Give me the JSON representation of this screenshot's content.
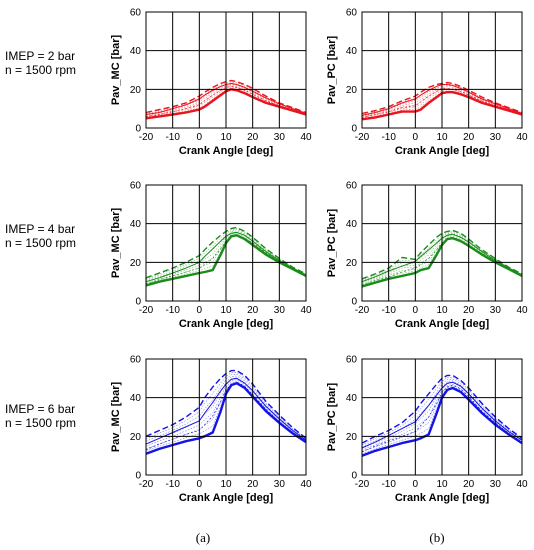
{
  "row_labels": [
    {
      "imep": "IMEP = 2 bar",
      "speed": "n = 1500 rpm"
    },
    {
      "imep": "IMEP = 4 bar",
      "speed": "n = 1500 rpm"
    },
    {
      "imep": "IMEP = 6 bar",
      "speed": "n = 1500 rpm"
    }
  ],
  "column_labels": [
    "(a)",
    "(b)"
  ],
  "colors": {
    "row1": "#e8141e",
    "row2": "#1a8c1a",
    "row3": "#1414e6"
  },
  "chart_data": [
    {
      "type": "line",
      "panel": "IMEP 2 bar - MC",
      "xlabel": "Crank Angle [deg]",
      "ylabel": "Pav_MC [bar]",
      "xlim": [
        -20,
        40
      ],
      "ylim": [
        0,
        60
      ],
      "xticks": [
        -20,
        -10,
        0,
        10,
        20,
        30,
        40
      ],
      "yticks": [
        0,
        20,
        40,
        60
      ],
      "grid": true,
      "x": [
        -20,
        -15,
        -10,
        -5,
        0,
        2,
        5,
        8,
        10,
        12,
        14,
        17,
        20,
        25,
        30,
        35,
        40
      ],
      "series": [
        {
          "values": [
            5,
            6,
            7,
            8,
            9.5,
            11,
            14,
            17,
            19,
            20,
            19.5,
            18,
            16,
            13,
            11,
            9,
            7
          ]
        },
        {
          "values": [
            7,
            8,
            10,
            12,
            15,
            17,
            19.5,
            21.5,
            22.5,
            23,
            22.5,
            21,
            19,
            15.5,
            12.5,
            10,
            7.5
          ]
        },
        {
          "values": [
            8,
            9.5,
            11,
            13,
            16.5,
            18.5,
            21,
            23,
            24,
            24.5,
            24,
            22.5,
            20.5,
            16.5,
            13,
            10.5,
            8
          ]
        },
        {
          "values": [
            6,
            7,
            8.5,
            10,
            12,
            14,
            17,
            19.5,
            21,
            21.5,
            21,
            19.5,
            17.5,
            14,
            11.5,
            9.5,
            7
          ]
        }
      ]
    },
    {
      "type": "line",
      "panel": "IMEP 2 bar - PC",
      "xlabel": "Crank Angle [deg]",
      "ylabel": "Pav_PC [bar]",
      "xlim": [
        -20,
        40
      ],
      "ylim": [
        0,
        60
      ],
      "xticks": [
        -20,
        -10,
        0,
        10,
        20,
        30,
        40
      ],
      "yticks": [
        0,
        20,
        40,
        60
      ],
      "grid": true,
      "x": [
        -20,
        -15,
        -10,
        -5,
        0,
        2,
        5,
        8,
        10,
        12,
        14,
        17,
        20,
        25,
        30,
        35,
        40
      ],
      "series": [
        {
          "values": [
            4.5,
            5.5,
            7,
            8.5,
            8.5,
            9.5,
            13,
            16,
            18,
            18.5,
            18.5,
            17.5,
            16,
            13,
            11,
            9,
            7
          ]
        },
        {
          "values": [
            6.5,
            8,
            10,
            13,
            15,
            17,
            19.5,
            21.5,
            22.5,
            22.5,
            22,
            20.5,
            18.5,
            15,
            12.5,
            10,
            7.5
          ]
        },
        {
          "values": [
            7.5,
            9,
            11,
            14,
            16.5,
            18.5,
            21,
            22.5,
            23,
            23.5,
            23,
            21.5,
            19.5,
            16,
            13,
            10.5,
            8
          ]
        },
        {
          "values": [
            5.5,
            7,
            8.5,
            10.5,
            11.5,
            13.5,
            16.5,
            19,
            20.5,
            20.5,
            20,
            19,
            17,
            14,
            11.5,
            9.5,
            7
          ]
        }
      ]
    },
    {
      "type": "line",
      "panel": "IMEP 4 bar - MC",
      "xlabel": "Crank Angle [deg]",
      "ylabel": "Pav_MC [bar]",
      "xlim": [
        -20,
        40
      ],
      "ylim": [
        0,
        60
      ],
      "xticks": [
        -20,
        -10,
        0,
        10,
        20,
        30,
        40
      ],
      "yticks": [
        0,
        20,
        40,
        60
      ],
      "grid": true,
      "x": [
        -20,
        -15,
        -10,
        -5,
        0,
        2,
        5,
        8,
        10,
        12,
        14,
        17,
        20,
        25,
        30,
        35,
        40
      ],
      "series": [
        {
          "values": [
            8,
            10,
            11.5,
            13,
            14.5,
            15,
            16,
            24,
            30,
            33.5,
            34,
            32,
            29,
            24,
            20,
            16.5,
            13
          ]
        },
        {
          "values": [
            10,
            12,
            14.5,
            17,
            20,
            23,
            27,
            31,
            33.5,
            35,
            35.5,
            34,
            31,
            25.5,
            21,
            17,
            13.5
          ]
        },
        {
          "values": [
            12,
            14.5,
            17,
            20,
            23.5,
            26.5,
            30.5,
            34,
            36,
            37.5,
            38,
            36,
            33,
            27,
            22,
            17.5,
            14
          ]
        },
        {
          "values": [
            9,
            11,
            13,
            15,
            17,
            19,
            22,
            27,
            31,
            33,
            34,
            32.5,
            30,
            25,
            20.5,
            16.5,
            13
          ]
        }
      ]
    },
    {
      "type": "line",
      "panel": "IMEP 4 bar - PC",
      "xlabel": "Crank Angle [deg]",
      "ylabel": "Pav_PC [bar]",
      "xlim": [
        -20,
        40
      ],
      "ylim": [
        0,
        60
      ],
      "xticks": [
        -20,
        -10,
        0,
        10,
        20,
        30,
        40
      ],
      "yticks": [
        0,
        20,
        40,
        60
      ],
      "grid": true,
      "x": [
        -20,
        -15,
        -10,
        -5,
        0,
        2,
        5,
        8,
        10,
        12,
        14,
        17,
        20,
        25,
        30,
        35,
        40
      ],
      "series": [
        {
          "values": [
            7.5,
            9.5,
            11.5,
            13,
            14.5,
            16,
            17,
            24,
            29,
            32,
            32.5,
            31,
            28.5,
            24,
            20,
            16.5,
            13
          ]
        },
        {
          "values": [
            10,
            12.5,
            15.5,
            18,
            20.5,
            23,
            26.5,
            30,
            32.5,
            34,
            34.5,
            33,
            30.5,
            25.5,
            21,
            17,
            13.5
          ]
        },
        {
          "values": [
            11.5,
            14,
            17,
            22.5,
            21.5,
            25,
            29,
            33,
            35,
            36,
            36.5,
            35,
            32,
            26.5,
            22,
            17.5,
            14
          ]
        },
        {
          "values": [
            8.5,
            10.5,
            12.5,
            15,
            17,
            19,
            22,
            26.5,
            30,
            32,
            33,
            31.5,
            29,
            24.5,
            20.5,
            16.5,
            13
          ]
        }
      ]
    },
    {
      "type": "line",
      "panel": "IMEP 6 bar - MC",
      "xlabel": "Crank Angle [deg]",
      "ylabel": "Pav_MC [bar]",
      "xlim": [
        -20,
        40
      ],
      "ylim": [
        0,
        60
      ],
      "xticks": [
        -20,
        -10,
        0,
        10,
        20,
        30,
        40
      ],
      "yticks": [
        0,
        20,
        40,
        60
      ],
      "grid": true,
      "x": [
        -20,
        -15,
        -10,
        -5,
        0,
        2,
        5,
        8,
        10,
        12,
        14,
        17,
        20,
        25,
        30,
        35,
        40
      ],
      "series": [
        {
          "values": [
            11,
            13.5,
            15.5,
            17.5,
            19,
            20,
            22,
            33,
            42,
            46.5,
            47.5,
            45,
            40.5,
            33,
            27,
            21.5,
            17
          ]
        },
        {
          "values": [
            16,
            19,
            22,
            25,
            28,
            32,
            37.5,
            43.5,
            47,
            49.5,
            50,
            47.5,
            43.5,
            35.5,
            29,
            23,
            18
          ]
        },
        {
          "values": [
            20,
            23,
            26,
            30,
            35,
            40,
            45.5,
            50,
            52.5,
            54,
            54,
            51.5,
            47,
            38,
            31,
            24.5,
            19
          ]
        },
        {
          "values": [
            13,
            16,
            18.5,
            21,
            23,
            26,
            30.5,
            38,
            44,
            47,
            48,
            46,
            41.5,
            34,
            27.5,
            22,
            17.5
          ]
        }
      ]
    },
    {
      "type": "line",
      "panel": "IMEP 6 bar - PC",
      "xlabel": "Crank Angle [deg]",
      "ylabel": "Pav_PC [bar]",
      "xlim": [
        -20,
        40
      ],
      "ylim": [
        0,
        60
      ],
      "xticks": [
        -20,
        -10,
        0,
        10,
        20,
        30,
        40
      ],
      "yticks": [
        0,
        20,
        40,
        60
      ],
      "grid": true,
      "x": [
        -20,
        -15,
        -10,
        -5,
        0,
        2,
        5,
        8,
        10,
        12,
        14,
        17,
        20,
        25,
        30,
        35,
        40
      ],
      "series": [
        {
          "values": [
            10,
            12.5,
            14.5,
            16.5,
            18,
            19,
            21,
            32,
            40,
            44,
            45,
            43,
            39,
            32,
            26,
            21,
            16.5
          ]
        },
        {
          "values": [
            14,
            17,
            20.5,
            24,
            27.5,
            31,
            36,
            41.5,
            45,
            47.5,
            48,
            46,
            42,
            34.5,
            28,
            22.5,
            18
          ]
        },
        {
          "values": [
            16.5,
            20,
            23,
            27,
            33,
            37,
            42,
            47,
            50,
            51.5,
            51.5,
            49,
            45,
            37,
            30,
            24,
            19
          ]
        },
        {
          "values": [
            12,
            15,
            17.5,
            20,
            22.5,
            25.5,
            30,
            37,
            42.5,
            45.5,
            46.5,
            44.5,
            40.5,
            33,
            27,
            21.5,
            17
          ]
        }
      ]
    }
  ]
}
